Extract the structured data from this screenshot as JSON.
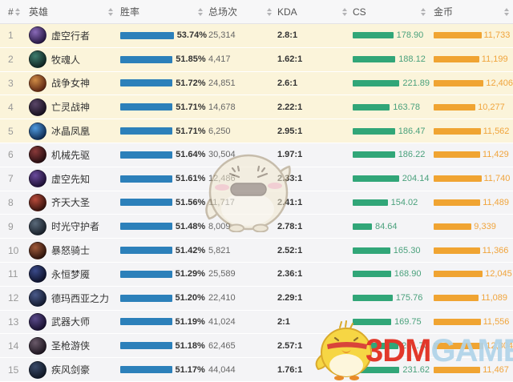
{
  "header": {
    "columns": [
      {
        "label": "#"
      },
      {
        "label": "英雄"
      },
      {
        "label": "胜率"
      },
      {
        "label": "总场次"
      },
      {
        "label": "KDA"
      },
      {
        "label": "CS"
      },
      {
        "label": "金币"
      }
    ]
  },
  "colors": {
    "win_bar": "#2c80ba",
    "cs_bar": "#31a678",
    "gold_bar": "#f0a432",
    "cs_text": "#4aa17c",
    "gold_text": "#f0a43c",
    "top5_row_bg": "#fbf4da",
    "row_bg": "#f4f4f6"
  },
  "rows": [
    {
      "rank": "1",
      "name": "虚空行者",
      "win_rate": "53.74%",
      "total_games": "25,314",
      "kda": "2.8:1",
      "cs": "178.90",
      "gold": "11,733",
      "avatar_colors": [
        "#8a6ab8",
        "#241640"
      ]
    },
    {
      "rank": "2",
      "name": "牧魂人",
      "win_rate": "51.85%",
      "total_games": "4,417",
      "kda": "1.62:1",
      "cs": "188.12",
      "gold": "11,199",
      "avatar_colors": [
        "#3e7d6e",
        "#0f2321"
      ]
    },
    {
      "rank": "3",
      "name": "战争女神",
      "win_rate": "51.72%",
      "total_games": "24,851",
      "kda": "2.6:1",
      "cs": "221.89",
      "gold": "12,406",
      "avatar_colors": [
        "#cf8b45",
        "#5a2412"
      ]
    },
    {
      "rank": "4",
      "name": "亡灵战神",
      "win_rate": "51.71%",
      "total_games": "14,678",
      "kda": "2.22:1",
      "cs": "163.78",
      "gold": "10,277",
      "avatar_colors": [
        "#5a4668",
        "#17101f"
      ]
    },
    {
      "rank": "5",
      "name": "冰晶凤凰",
      "win_rate": "51.71%",
      "total_games": "6,250",
      "kda": "2.95:1",
      "cs": "186.47",
      "gold": "11,562",
      "avatar_colors": [
        "#4f9ade",
        "#0e2a50"
      ]
    },
    {
      "rank": "6",
      "name": "机械先驱",
      "win_rate": "51.64%",
      "total_games": "30,504",
      "kda": "1.97:1",
      "cs": "186.22",
      "gold": "11,429",
      "avatar_colors": [
        "#8a3a3a",
        "#250d11"
      ]
    },
    {
      "rank": "7",
      "name": "虚空先知",
      "win_rate": "51.61%",
      "total_games": "12,486",
      "kda": "2.33:1",
      "cs": "204.14",
      "gold": "11,740",
      "avatar_colors": [
        "#6a4b9c",
        "#1c0e33"
      ]
    },
    {
      "rank": "8",
      "name": "齐天大圣",
      "win_rate": "51.56%",
      "total_games": "11,717",
      "kda": "2.41:1",
      "cs": "154.02",
      "gold": "11,489",
      "avatar_colors": [
        "#b84a3a",
        "#34120d"
      ]
    },
    {
      "rank": "9",
      "name": "时光守护者",
      "win_rate": "51.48%",
      "total_games": "8,009",
      "kda": "2.78:1",
      "cs": "84.64",
      "gold": "9,339",
      "avatar_colors": [
        "#5a6a7a",
        "#181f29"
      ]
    },
    {
      "rank": "10",
      "name": "暴怒骑士",
      "win_rate": "51.42%",
      "total_games": "5,821",
      "kda": "2.52:1",
      "cs": "165.30",
      "gold": "11,366",
      "avatar_colors": [
        "#a05a3a",
        "#2c130c"
      ]
    },
    {
      "rank": "11",
      "name": "永恒梦魇",
      "win_rate": "51.29%",
      "total_games": "25,589",
      "kda": "2.36:1",
      "cs": "168.90",
      "gold": "12,045",
      "avatar_colors": [
        "#3a4a8a",
        "#0d1129"
      ]
    },
    {
      "rank": "12",
      "name": "德玛西亚之力",
      "win_rate": "51.20%",
      "total_games": "22,410",
      "kda": "2.29:1",
      "cs": "175.76",
      "gold": "11,089",
      "avatar_colors": [
        "#4a5a8a",
        "#12192e"
      ]
    },
    {
      "rank": "13",
      "name": "武器大师",
      "win_rate": "51.19%",
      "total_games": "41,024",
      "kda": "2:1",
      "cs": "169.75",
      "gold": "11,556",
      "avatar_colors": [
        "#5a4a8a",
        "#170f2e"
      ]
    },
    {
      "rank": "14",
      "name": "圣枪游侠",
      "win_rate": "51.18%",
      "total_games": "62,465",
      "kda": "2.57:1",
      "cs": "201.70",
      "gold": "12,304",
      "avatar_colors": [
        "#6a5a6a",
        "#1d151f"
      ]
    },
    {
      "rank": "15",
      "name": "疾风剑豪",
      "win_rate": "51.17%",
      "total_games": "44,044",
      "kda": "1.76:1",
      "cs": "231.62",
      "gold": "11,467",
      "avatar_colors": [
        "#3a4a6a",
        "#101724"
      ]
    }
  ],
  "watermark": {
    "brand_red": "3DM",
    "brand_blue": "GAME",
    "tm": "™"
  }
}
